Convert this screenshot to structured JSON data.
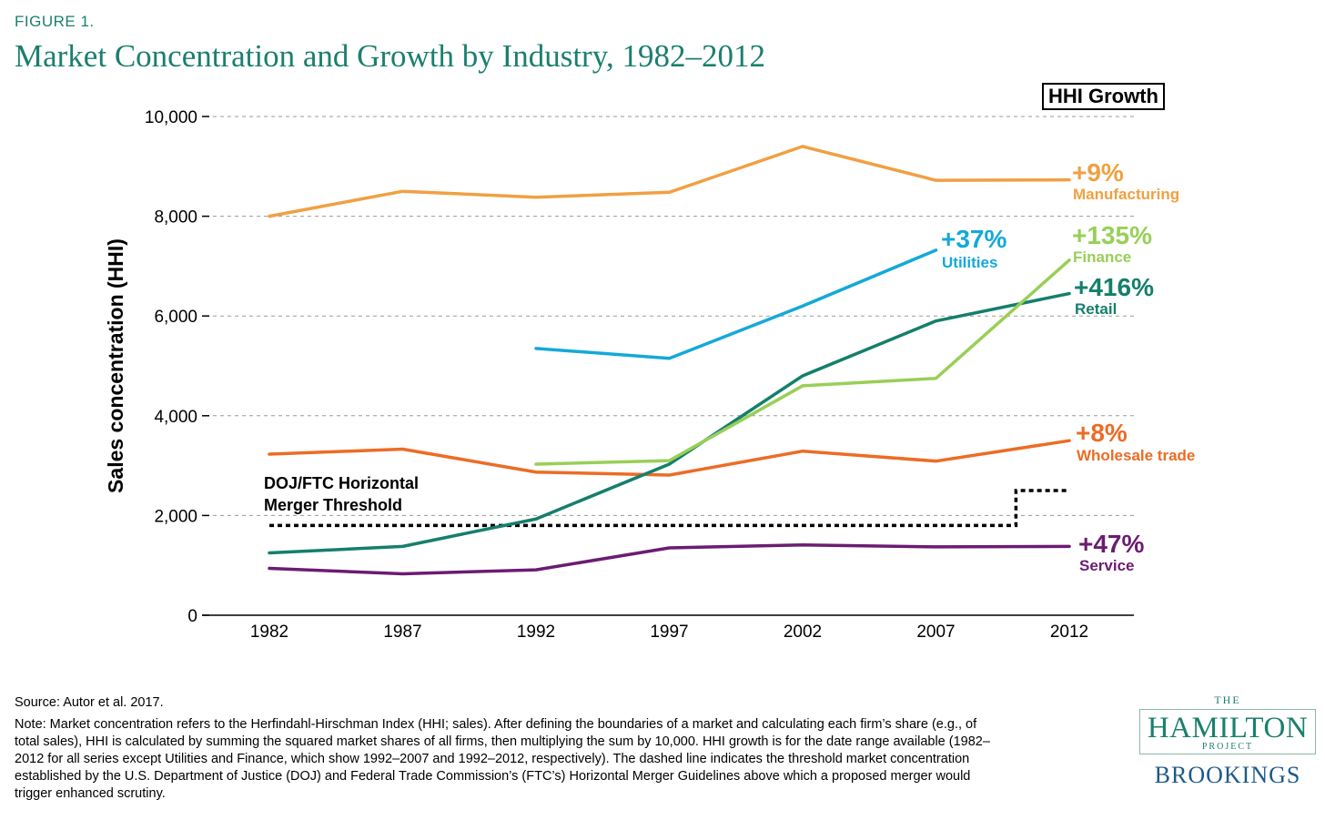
{
  "figure_label": "FIGURE 1.",
  "title": "Market Concentration and Growth by Industry, 1982–2012",
  "legend_title": "HHI Growth",
  "source": "Source: Autor et al. 2017.",
  "note": "Note: Market concentration refers to the Herfindahl-Hirschman Index (HHI; sales). After defining the boundaries of a market and calculating each firm’s share (e.g., of total sales), HHI is calculated by summing the squared market shares of all firms, then multiplying the sum by 10,000. HHI growth is for the date range available (1982–2012 for all series except Utilities and Finance, which show 1992–2007 and 1992–2012, respectively). The dashed line indicates the threshold market concentration established by the U.S. Department of Justice (DOJ) and Federal Trade Commission’s (FTC’s) Horizontal Merger Guidelines above which a proposed merger would trigger enhanced scrutiny.",
  "logo": {
    "the": "THE",
    "main": "HAMILTON",
    "sub": "PROJECT",
    "brookings": "BROOKINGS"
  },
  "chart_data": {
    "type": "line",
    "title": "Market Concentration and Growth by Industry, 1982–2012",
    "xlabel": "",
    "ylabel": "Sales concentration (HHI)",
    "ylim": [
      0,
      10000
    ],
    "yticks": [
      0,
      2000,
      4000,
      6000,
      8000,
      10000
    ],
    "ytick_labels": [
      "0",
      "2,000",
      "4,000",
      "6,000",
      "8,000",
      "10,000"
    ],
    "x": [
      1982,
      1987,
      1992,
      1997,
      2002,
      2007,
      2012
    ],
    "x_labels": [
      "1982",
      "1987",
      "1992",
      "1997",
      "2002",
      "2007",
      "2012"
    ],
    "grid": "horizontal dashed",
    "series": [
      {
        "name": "Manufacturing",
        "growth": "+9%",
        "color": "#f0a042",
        "values": [
          8000,
          8500,
          8380,
          8480,
          9400,
          8720,
          8730
        ]
      },
      {
        "name": "Utilities",
        "growth": "+37%",
        "color": "#14a9d8",
        "values": [
          null,
          null,
          5350,
          5150,
          6200,
          7320,
          null
        ]
      },
      {
        "name": "Finance",
        "growth": "+135%",
        "color": "#98cf57",
        "values": [
          null,
          null,
          3030,
          3100,
          4600,
          4750,
          7120
        ]
      },
      {
        "name": "Retail",
        "growth": "+416%",
        "color": "#147f6c",
        "values": [
          1250,
          1380,
          1930,
          3030,
          4800,
          5900,
          6450
        ]
      },
      {
        "name": "Wholesale trade",
        "growth": "+8%",
        "color": "#ec6c25",
        "values": [
          3230,
          3330,
          2870,
          2810,
          3290,
          3090,
          3500
        ]
      },
      {
        "name": "Service",
        "growth": "+47%",
        "color": "#6b1c72",
        "values": [
          940,
          830,
          910,
          1350,
          1410,
          1370,
          1380
        ]
      }
    ],
    "threshold": {
      "label_line1": "DOJ/FTC Horizontal",
      "label_line2": "Merger Threshold",
      "points": [
        [
          1982,
          1800
        ],
        [
          2010,
          1800
        ],
        [
          2010,
          2500
        ],
        [
          2012,
          2500
        ]
      ]
    }
  }
}
